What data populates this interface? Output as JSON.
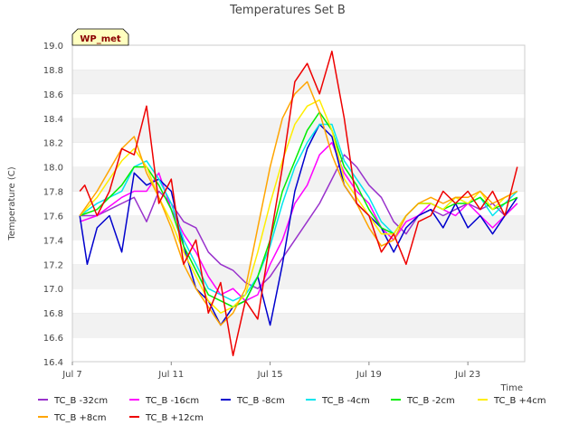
{
  "chart_data": {
    "type": "line",
    "title": "Temperatures Set B",
    "xlabel": "Time",
    "ylabel": "Temperature (C)",
    "badge": "WP_met",
    "xlim": [
      7,
      25.3
    ],
    "ylim": [
      16.4,
      19.0
    ],
    "x_ticks": [
      {
        "label": "Jul 7",
        "value": 7
      },
      {
        "label": "Jul 11",
        "value": 11
      },
      {
        "label": "Jul 15",
        "value": 15
      },
      {
        "label": "Jul 19",
        "value": 19
      },
      {
        "label": "Jul 23",
        "value": 23
      }
    ],
    "y_ticks": [
      {
        "label": "16.4",
        "value": 16.4
      },
      {
        "label": "16.6",
        "value": 16.6
      },
      {
        "label": "16.8",
        "value": 16.8
      },
      {
        "label": "17.0",
        "value": 17.0
      },
      {
        "label": "17.2",
        "value": 17.2
      },
      {
        "label": "17.4",
        "value": 17.4
      },
      {
        "label": "17.6",
        "value": 17.6
      },
      {
        "label": "17.8",
        "value": 17.8
      },
      {
        "label": "18.0",
        "value": 18.0
      },
      {
        "label": "18.2",
        "value": 18.2
      },
      {
        "label": "18.4",
        "value": 18.4
      },
      {
        "label": "18.6",
        "value": 18.6
      },
      {
        "label": "18.8",
        "value": 18.8
      },
      {
        "label": "19.0",
        "value": 19.0
      }
    ],
    "grid": "horizontal alternating bands",
    "legend_position": "bottom",
    "series": [
      {
        "name": "TC_B -32cm",
        "color": "#9932cc",
        "x": [
          7.3,
          8,
          9,
          9.5,
          10,
          10.5,
          11,
          11.5,
          12,
          12.5,
          13,
          13.5,
          14,
          14.5,
          15,
          15.5,
          16,
          16.5,
          17,
          17.5,
          18,
          18.5,
          19,
          19.5,
          20,
          20.5,
          21,
          21.5,
          22,
          22.5,
          23,
          23.5,
          24,
          24.5,
          25
        ],
        "y": [
          17.6,
          17.6,
          17.7,
          17.75,
          17.55,
          17.8,
          17.7,
          17.55,
          17.5,
          17.3,
          17.2,
          17.15,
          17.05,
          17.0,
          17.1,
          17.25,
          17.4,
          17.55,
          17.7,
          17.9,
          18.1,
          18.0,
          17.85,
          17.75,
          17.55,
          17.45,
          17.6,
          17.65,
          17.6,
          17.65,
          17.7,
          17.65,
          17.7,
          17.6,
          17.7
        ]
      },
      {
        "name": "TC_B -16cm",
        "color": "#ff00ff",
        "x": [
          7.3,
          8,
          9,
          9.5,
          10,
          10.5,
          11,
          11.5,
          12,
          12.5,
          13,
          13.5,
          14,
          14.5,
          15,
          15.5,
          16,
          16.5,
          17,
          17.5,
          18,
          18.5,
          19,
          19.5,
          20,
          20.5,
          21,
          21.5,
          22,
          22.5,
          23,
          23.5,
          24,
          24.5,
          25
        ],
        "y": [
          17.55,
          17.6,
          17.75,
          17.8,
          17.8,
          17.95,
          17.65,
          17.45,
          17.3,
          17.1,
          16.95,
          17.0,
          16.9,
          16.95,
          17.2,
          17.4,
          17.7,
          17.85,
          18.1,
          18.2,
          17.95,
          17.8,
          17.7,
          17.5,
          17.4,
          17.55,
          17.6,
          17.7,
          17.65,
          17.6,
          17.7,
          17.6,
          17.5,
          17.6,
          17.7
        ]
      },
      {
        "name": "TC_B -8cm",
        "color": "#0000cd",
        "x": [
          7.3,
          7.6,
          8,
          8.5,
          9,
          9.5,
          10,
          10.5,
          11,
          11.5,
          12,
          12.5,
          13,
          13.5,
          14,
          14.5,
          15,
          15.5,
          16,
          16.5,
          17,
          17.5,
          18,
          18.5,
          19,
          19.5,
          20,
          20.5,
          21,
          21.5,
          22,
          22.5,
          23,
          23.5,
          24,
          24.5,
          25
        ],
        "y": [
          17.6,
          17.2,
          17.5,
          17.6,
          17.3,
          17.95,
          17.85,
          17.9,
          17.8,
          17.35,
          17.0,
          16.9,
          16.7,
          16.85,
          16.9,
          17.1,
          16.7,
          17.2,
          17.8,
          18.15,
          18.35,
          18.25,
          17.85,
          17.7,
          17.6,
          17.5,
          17.3,
          17.5,
          17.6,
          17.65,
          17.5,
          17.7,
          17.5,
          17.6,
          17.45,
          17.6,
          17.75
        ]
      },
      {
        "name": "TC_B -4cm",
        "color": "#00e5ee",
        "x": [
          7.3,
          8,
          9,
          9.5,
          10,
          10.5,
          11,
          11.5,
          12,
          12.5,
          13,
          13.5,
          14,
          14.5,
          15,
          15.5,
          16,
          16.5,
          17,
          17.5,
          18,
          18.5,
          19,
          19.5,
          20,
          20.5,
          21,
          21.5,
          22,
          22.5,
          23,
          23.5,
          24,
          24.5,
          25
        ],
        "y": [
          17.6,
          17.7,
          17.8,
          18.0,
          18.05,
          17.9,
          17.7,
          17.4,
          17.2,
          17.0,
          16.95,
          16.9,
          16.95,
          17.1,
          17.35,
          17.7,
          18.0,
          18.2,
          18.35,
          18.35,
          18.05,
          17.9,
          17.75,
          17.55,
          17.45,
          17.6,
          17.7,
          17.7,
          17.65,
          17.75,
          17.7,
          17.75,
          17.6,
          17.7,
          17.8
        ]
      },
      {
        "name": "TC_B -2cm",
        "color": "#00ee00",
        "x": [
          7.3,
          8,
          9,
          9.5,
          10,
          10.5,
          11,
          11.5,
          12,
          12.5,
          13,
          13.5,
          14,
          14.5,
          15,
          15.5,
          16,
          16.5,
          17,
          17.5,
          18,
          18.5,
          19,
          19.5,
          20,
          20.5,
          21,
          21.5,
          22,
          22.5,
          23,
          23.5,
          24,
          24.5,
          25
        ],
        "y": [
          17.6,
          17.65,
          17.85,
          18.0,
          18.0,
          17.85,
          17.65,
          17.35,
          17.15,
          16.95,
          16.9,
          16.85,
          16.9,
          17.1,
          17.4,
          17.8,
          18.05,
          18.3,
          18.45,
          18.3,
          18.0,
          17.85,
          17.65,
          17.5,
          17.45,
          17.6,
          17.7,
          17.7,
          17.65,
          17.7,
          17.7,
          17.75,
          17.65,
          17.7,
          17.75
        ]
      },
      {
        "name": "TC_B +4cm",
        "color": "#ffee00",
        "x": [
          7.3,
          8,
          9,
          9.5,
          10,
          10.5,
          11,
          11.5,
          12,
          12.5,
          13,
          13.5,
          14,
          14.5,
          15,
          15.5,
          16,
          16.5,
          17,
          17.5,
          18,
          18.5,
          19,
          19.5,
          20,
          20.5,
          21,
          21.5,
          22,
          22.5,
          23,
          23.5,
          24,
          24.5,
          25
        ],
        "y": [
          17.6,
          17.75,
          18.05,
          18.15,
          18.0,
          17.75,
          17.55,
          17.3,
          17.1,
          16.9,
          16.8,
          16.85,
          16.95,
          17.3,
          17.7,
          18.05,
          18.35,
          18.5,
          18.55,
          18.3,
          17.9,
          17.75,
          17.6,
          17.45,
          17.45,
          17.6,
          17.7,
          17.7,
          17.65,
          17.75,
          17.7,
          17.8,
          17.65,
          17.75,
          17.8
        ]
      },
      {
        "name": "TC_B +8cm",
        "color": "#ffa500",
        "x": [
          7.3,
          8,
          9,
          9.5,
          10,
          10.5,
          11,
          11.5,
          12,
          12.5,
          13,
          13.5,
          14,
          14.5,
          15,
          15.5,
          16,
          16.5,
          17,
          17.5,
          18,
          18.5,
          19,
          19.5,
          20,
          20.5,
          21,
          21.5,
          22,
          22.5,
          23,
          23.5,
          24,
          24.5,
          25
        ],
        "y": [
          17.6,
          17.8,
          18.15,
          18.25,
          17.95,
          17.75,
          17.5,
          17.2,
          17.0,
          16.85,
          16.7,
          16.8,
          17.0,
          17.5,
          18.0,
          18.4,
          18.6,
          18.7,
          18.45,
          18.1,
          17.85,
          17.7,
          17.5,
          17.35,
          17.4,
          17.6,
          17.7,
          17.75,
          17.7,
          17.75,
          17.75,
          17.8,
          17.7,
          17.75,
          17.8
        ]
      },
      {
        "name": "TC_B +12cm",
        "color": "#ee0000",
        "x": [
          7.3,
          7.5,
          8,
          8.5,
          9,
          9.5,
          10,
          10.5,
          11,
          11.5,
          12,
          12.5,
          13,
          13.5,
          14,
          14.5,
          15,
          15.5,
          16,
          16.5,
          17,
          17.5,
          18,
          18.5,
          19,
          19.5,
          20,
          20.5,
          21,
          21.5,
          22,
          22.5,
          23,
          23.5,
          24,
          24.5,
          25
        ],
        "y": [
          17.8,
          17.85,
          17.6,
          17.8,
          18.15,
          18.1,
          18.5,
          17.7,
          17.9,
          17.2,
          17.4,
          16.8,
          17.05,
          16.45,
          16.9,
          16.75,
          17.4,
          18.0,
          18.7,
          18.85,
          18.6,
          18.95,
          18.4,
          17.7,
          17.6,
          17.3,
          17.45,
          17.2,
          17.55,
          17.6,
          17.8,
          17.7,
          17.8,
          17.65,
          17.8,
          17.6,
          18.0
        ]
      }
    ]
  }
}
